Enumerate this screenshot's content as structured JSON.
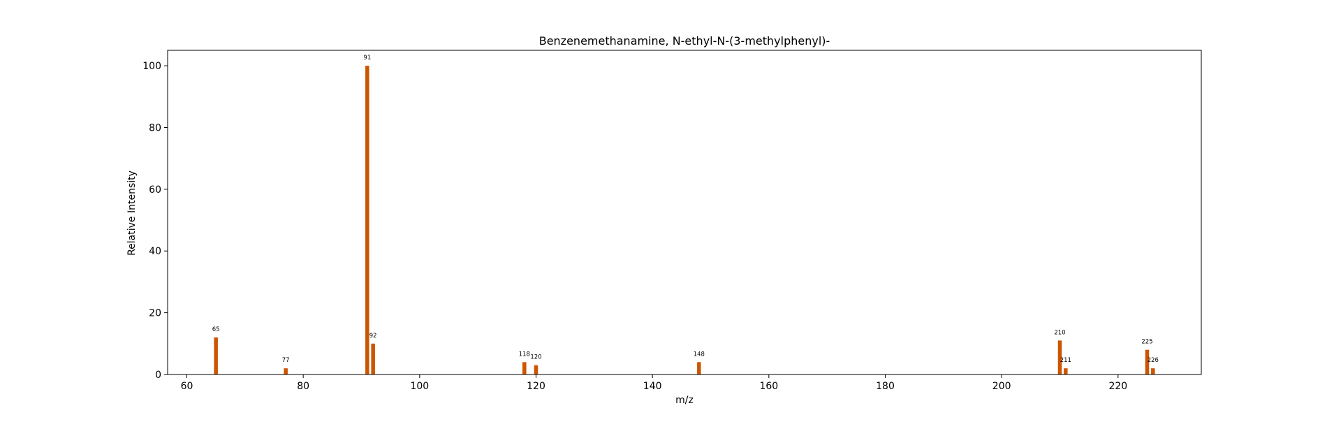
{
  "chart_data": {
    "type": "bar",
    "title": "Benzenemethanamine, N-ethyl-N-(3-methylphenyl)-",
    "xlabel": "m/z",
    "ylabel": "Relative Intensity",
    "xlim": [
      56.7,
      234.3
    ],
    "ylim": [
      0,
      105
    ],
    "xticks": [
      60,
      80,
      100,
      120,
      140,
      160,
      180,
      200,
      220
    ],
    "yticks": [
      0,
      20,
      40,
      60,
      80,
      100
    ],
    "grid": false,
    "bar_color": "#cc5500",
    "peaks": [
      {
        "mz": 65,
        "intensity": 12,
        "label": "65"
      },
      {
        "mz": 77,
        "intensity": 2,
        "label": "77"
      },
      {
        "mz": 91,
        "intensity": 100,
        "label": "91"
      },
      {
        "mz": 92,
        "intensity": 10,
        "label": "92"
      },
      {
        "mz": 118,
        "intensity": 4,
        "label": "118"
      },
      {
        "mz": 120,
        "intensity": 3,
        "label": "120"
      },
      {
        "mz": 148,
        "intensity": 4,
        "label": "148"
      },
      {
        "mz": 210,
        "intensity": 11,
        "label": "210"
      },
      {
        "mz": 211,
        "intensity": 2,
        "label": "211"
      },
      {
        "mz": 225,
        "intensity": 8,
        "label": "225"
      },
      {
        "mz": 226,
        "intensity": 2,
        "label": "226"
      }
    ]
  }
}
